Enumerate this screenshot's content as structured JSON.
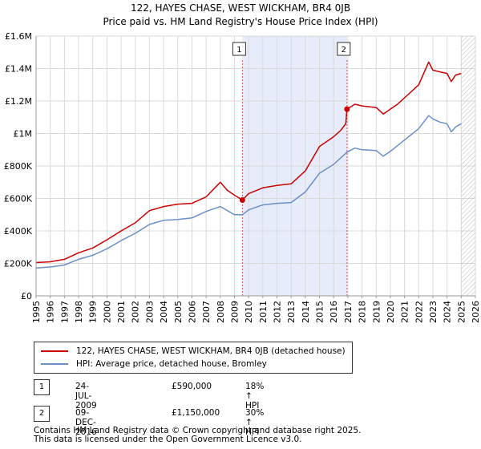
{
  "chart_data": {
    "type": "line",
    "title": "122, HAYES CHASE, WEST WICKHAM, BR4 0JB",
    "subtitle": "Price paid vs. HM Land Registry's House Price Index (HPI)",
    "xlabel": "",
    "ylabel": "",
    "xlim": [
      1995,
      2026
    ],
    "ylim": [
      0,
      1600000
    ],
    "y_ticks": [
      0,
      200000,
      400000,
      600000,
      800000,
      1000000,
      1200000,
      1400000,
      1600000
    ],
    "y_tick_labels": [
      "£0",
      "£200K",
      "£400K",
      "£600K",
      "£800K",
      "£1M",
      "£1.2M",
      "£1.4M",
      "£1.6M"
    ],
    "x_ticks": [
      1995,
      1996,
      1997,
      1998,
      1999,
      2000,
      2001,
      2002,
      2003,
      2004,
      2005,
      2006,
      2007,
      2008,
      2009,
      2010,
      2011,
      2012,
      2013,
      2014,
      2015,
      2016,
      2017,
      2018,
      2019,
      2020,
      2021,
      2022,
      2023,
      2024,
      2025,
      2026
    ],
    "x_tick_labels": [
      "1995",
      "1996",
      "1997",
      "1998",
      "1999",
      "2000",
      "2001",
      "2002",
      "2003",
      "2004",
      "2005",
      "2006",
      "2007",
      "2008",
      "2009",
      "2010",
      "2011",
      "2012",
      "2013",
      "2014",
      "2015",
      "2016",
      "2017",
      "2018",
      "2019",
      "2020",
      "2021",
      "2022",
      "2023",
      "2024",
      "2025",
      "2026"
    ],
    "grid": true,
    "shaded_region": [
      2009.56,
      2016.94
    ],
    "future_hatch_from": 2025.0,
    "series": [
      {
        "name": "122, HAYES CHASE, WEST WICKHAM, BR4 0JB (detached house)",
        "color": "#cc0000",
        "x": [
          1995.0,
          1996.0,
          1997.0,
          1998.0,
          1999.0,
          2000.0,
          2001.0,
          2002.0,
          2003.0,
          2004.0,
          2005.0,
          2006.0,
          2007.0,
          2008.0,
          2008.5,
          2009.0,
          2009.56,
          2010.0,
          2011.0,
          2012.0,
          2013.0,
          2014.0,
          2015.0,
          2016.0,
          2016.5,
          2016.85,
          2016.94,
          2017.5,
          2018.0,
          2019.0,
          2019.5,
          2020.0,
          2020.5,
          2021.0,
          2022.0,
          2022.7,
          2023.0,
          2023.5,
          2024.0,
          2024.3,
          2024.6,
          2025.0
        ],
        "values": [
          205000,
          210000,
          225000,
          265000,
          295000,
          345000,
          400000,
          450000,
          525000,
          550000,
          565000,
          570000,
          610000,
          700000,
          650000,
          620000,
          590000,
          630000,
          665000,
          680000,
          690000,
          770000,
          920000,
          980000,
          1020000,
          1060000,
          1150000,
          1180000,
          1170000,
          1160000,
          1120000,
          1150000,
          1180000,
          1220000,
          1300000,
          1440000,
          1390000,
          1380000,
          1370000,
          1320000,
          1360000,
          1370000
        ]
      },
      {
        "name": "HPI: Average price, detached house, Bromley",
        "color": "#6a8fc8",
        "x": [
          1995.0,
          1996.0,
          1997.0,
          1998.0,
          1999.0,
          2000.0,
          2001.0,
          2002.0,
          2003.0,
          2004.0,
          2005.0,
          2006.0,
          2007.0,
          2008.0,
          2009.0,
          2009.56,
          2010.0,
          2011.0,
          2012.0,
          2013.0,
          2014.0,
          2015.0,
          2016.0,
          2016.94,
          2017.5,
          2018.0,
          2019.0,
          2019.5,
          2020.0,
          2020.5,
          2021.0,
          2022.0,
          2022.7,
          2023.0,
          2023.5,
          2024.0,
          2024.3,
          2024.6,
          2025.0
        ],
        "values": [
          172000,
          178000,
          190000,
          225000,
          250000,
          290000,
          340000,
          385000,
          440000,
          465000,
          470000,
          480000,
          520000,
          550000,
          500000,
          500000,
          530000,
          560000,
          570000,
          575000,
          640000,
          755000,
          810000,
          885000,
          910000,
          900000,
          895000,
          860000,
          890000,
          925000,
          960000,
          1030000,
          1110000,
          1090000,
          1070000,
          1060000,
          1010000,
          1040000,
          1060000
        ]
      }
    ],
    "annotations": [
      {
        "label": "1",
        "x": 2009.56
      },
      {
        "label": "2",
        "x": 2016.94
      }
    ]
  },
  "legend": {
    "property_label": "122, HAYES CHASE, WEST WICKHAM, BR4 0JB (detached house)",
    "hpi_label": "HPI: Average price, detached house, Bromley"
  },
  "sales": [
    {
      "badge": "1",
      "date": "24-JUL-2009",
      "price": "£590,000",
      "hpi": "18% ↑ HPI"
    },
    {
      "badge": "2",
      "date": "09-DEC-2016",
      "price": "£1,150,000",
      "hpi": "30% ↑ HPI"
    }
  ],
  "footer": {
    "line1": "Contains HM Land Registry data © Crown copyright and database right 2025.",
    "line2": "This data is licensed under the Open Government Licence v3.0."
  }
}
